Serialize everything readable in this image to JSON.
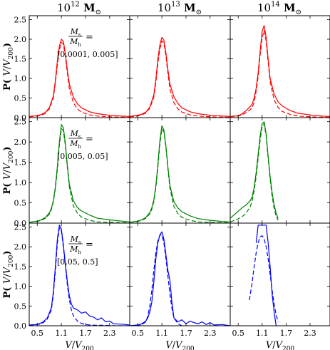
{
  "figure": {
    "column_titles": [
      {
        "base": "10",
        "exp": "12",
        "unit": "M",
        "sub": "⊙"
      },
      {
        "base": "10",
        "exp": "13",
        "unit": "M",
        "sub": "⊙"
      },
      {
        "base": "10",
        "exp": "14",
        "unit": "M",
        "sub": "⊙"
      }
    ],
    "ylabel": {
      "prefix": "P( ",
      "var": "V",
      "slash": "/",
      "var2": "V",
      "sub": "200",
      "suffix": ")"
    },
    "xlabel": {
      "var": "V",
      "slash": "/",
      "var2": "V",
      "sub": "200"
    },
    "row_annotations": [
      {
        "num": "M",
        "num_sub": "s",
        "den": "M",
        "den_sub": "h",
        "eq": "=",
        "range": "[0.0001, 0.005]"
      },
      {
        "num": "M",
        "num_sub": "s",
        "den": "M",
        "den_sub": "h",
        "eq": "=",
        "range": "[0.005, 0.05]"
      },
      {
        "num": "M",
        "num_sub": "s",
        "den": "M",
        "den_sub": "h",
        "eq": "=",
        "range": "[0.05, 0.5]"
      }
    ],
    "ytick_labels": [
      "0.0",
      "0.5",
      "1.0",
      "1.5",
      "2.0",
      "2.5"
    ],
    "xtick_labels": [
      "0.5",
      "1.1",
      "1.7",
      "2.3"
    ]
  },
  "chart_data": {
    "type": "line",
    "layout": "3x3 grid of panels, rows by stellar-to-halo mass ratio, columns by halo mass",
    "xlim": [
      0.3,
      2.8
    ],
    "ylim": [
      0,
      2.6
    ],
    "xticks": [
      0.5,
      1.1,
      1.7,
      2.3
    ],
    "yticks": [
      0.0,
      0.5,
      1.0,
      1.5,
      2.0,
      2.5
    ],
    "row_colors": [
      "#ff0000",
      "#008000",
      "#0000ff"
    ],
    "line_styles": {
      "solid": "solid",
      "dashed": "dashed"
    },
    "panels": [
      {
        "row": 0,
        "col": 0,
        "solid": {
          "x": [
            0.3,
            0.5,
            0.6,
            0.7,
            0.8,
            0.9,
            0.95,
            1.0,
            1.05,
            1.1,
            1.15,
            1.2,
            1.25,
            1.3,
            1.4,
            1.5,
            1.6,
            1.8,
            2.0,
            2.3,
            2.6,
            2.8
          ],
          "y": [
            0.03,
            0.05,
            0.08,
            0.13,
            0.25,
            0.55,
            0.95,
            1.45,
            1.82,
            2.0,
            1.95,
            1.62,
            1.2,
            0.85,
            0.52,
            0.35,
            0.25,
            0.15,
            0.1,
            0.06,
            0.04,
            0.03
          ]
        },
        "dashed": {
          "x": [
            0.3,
            0.5,
            0.6,
            0.7,
            0.8,
            0.9,
            0.95,
            1.0,
            1.05,
            1.1,
            1.15,
            1.2,
            1.25,
            1.3,
            1.4,
            1.5,
            1.6,
            1.8,
            2.0,
            2.3,
            2.6,
            2.8
          ],
          "y": [
            0.02,
            0.04,
            0.06,
            0.11,
            0.22,
            0.5,
            0.88,
            1.35,
            1.72,
            1.92,
            1.88,
            1.55,
            1.12,
            0.72,
            0.38,
            0.22,
            0.14,
            0.07,
            0.04,
            0.02,
            0.01,
            0.01
          ]
        }
      },
      {
        "row": 0,
        "col": 1,
        "solid": {
          "x": [
            0.3,
            0.5,
            0.6,
            0.7,
            0.8,
            0.9,
            0.95,
            1.0,
            1.05,
            1.1,
            1.15,
            1.2,
            1.25,
            1.3,
            1.4,
            1.5,
            1.6,
            1.8,
            2.0,
            2.3,
            2.6,
            2.8
          ],
          "y": [
            0.03,
            0.06,
            0.09,
            0.14,
            0.27,
            0.58,
            0.98,
            1.5,
            1.85,
            2.05,
            1.98,
            1.65,
            1.22,
            0.86,
            0.53,
            0.36,
            0.25,
            0.15,
            0.1,
            0.06,
            0.04,
            0.03
          ]
        },
        "dashed": {
          "x": [
            0.3,
            0.5,
            0.6,
            0.7,
            0.8,
            0.9,
            0.95,
            1.0,
            1.05,
            1.1,
            1.15,
            1.2,
            1.25,
            1.3,
            1.4,
            1.5,
            1.6,
            1.8,
            2.0,
            2.3,
            2.6,
            2.8
          ],
          "y": [
            0.02,
            0.04,
            0.07,
            0.12,
            0.24,
            0.52,
            0.9,
            1.38,
            1.75,
            1.96,
            1.9,
            1.57,
            1.13,
            0.73,
            0.38,
            0.22,
            0.14,
            0.07,
            0.04,
            0.02,
            0.01,
            0.01
          ]
        }
      },
      {
        "row": 0,
        "col": 2,
        "solid": {
          "x": [
            0.3,
            0.5,
            0.6,
            0.7,
            0.8,
            0.85,
            0.9,
            0.95,
            1.0,
            1.05,
            1.1,
            1.15,
            1.2,
            1.25,
            1.3,
            1.4,
            1.5,
            1.6,
            1.8,
            2.0,
            2.3,
            2.6,
            2.8
          ],
          "y": [
            0.03,
            0.05,
            0.1,
            0.18,
            0.28,
            0.35,
            0.5,
            0.75,
            1.15,
            1.7,
            2.2,
            2.35,
            2.05,
            1.5,
            1.0,
            0.6,
            0.4,
            0.3,
            0.18,
            0.11,
            0.07,
            0.04,
            0.03
          ]
        },
        "dashed": {
          "x": [
            0.3,
            0.5,
            0.6,
            0.7,
            0.8,
            0.85,
            0.9,
            0.95,
            1.0,
            1.05,
            1.1,
            1.15,
            1.2,
            1.25,
            1.3,
            1.4,
            1.5,
            1.6,
            1.8,
            2.0,
            2.3,
            2.6,
            2.8
          ],
          "y": [
            0.02,
            0.04,
            0.07,
            0.13,
            0.2,
            0.26,
            0.4,
            0.68,
            1.05,
            1.6,
            2.05,
            2.22,
            1.95,
            1.42,
            0.92,
            0.45,
            0.26,
            0.16,
            0.08,
            0.04,
            0.02,
            0.01,
            0.01
          ]
        }
      },
      {
        "row": 1,
        "col": 0,
        "solid": {
          "x": [
            0.3,
            0.5,
            0.6,
            0.7,
            0.8,
            0.85,
            0.9,
            0.95,
            1.0,
            1.05,
            1.1,
            1.15,
            1.2,
            1.25,
            1.3,
            1.4,
            1.5,
            1.6,
            1.8,
            2.0,
            2.3,
            2.6,
            2.8
          ],
          "y": [
            0.02,
            0.05,
            0.08,
            0.14,
            0.25,
            0.36,
            0.55,
            0.9,
            1.4,
            2.0,
            2.43,
            2.35,
            1.95,
            1.4,
            0.95,
            0.55,
            0.38,
            0.3,
            0.2,
            0.12,
            0.08,
            0.05,
            0.03
          ]
        },
        "dashed": {
          "x": [
            0.3,
            0.5,
            0.6,
            0.7,
            0.8,
            0.85,
            0.9,
            0.95,
            1.0,
            1.05,
            1.1,
            1.15,
            1.2,
            1.25,
            1.3,
            1.4,
            1.5,
            1.6,
            1.8,
            2.0,
            2.3,
            2.6,
            2.8
          ],
          "y": [
            0.02,
            0.04,
            0.07,
            0.12,
            0.22,
            0.33,
            0.52,
            0.85,
            1.32,
            1.92,
            2.33,
            2.28,
            1.9,
            1.35,
            0.88,
            0.42,
            0.24,
            0.15,
            0.07,
            0.03,
            0.02,
            0.01,
            0.01
          ]
        }
      },
      {
        "row": 1,
        "col": 1,
        "solid": {
          "x": [
            0.3,
            0.5,
            0.6,
            0.7,
            0.8,
            0.85,
            0.9,
            0.95,
            1.0,
            1.05,
            1.1,
            1.15,
            1.2,
            1.25,
            1.3,
            1.4,
            1.5,
            1.6,
            1.8,
            2.0,
            2.3,
            2.6,
            2.8
          ],
          "y": [
            0.02,
            0.05,
            0.08,
            0.14,
            0.26,
            0.38,
            0.57,
            0.93,
            1.45,
            2.03,
            2.4,
            2.3,
            1.9,
            1.38,
            0.93,
            0.53,
            0.37,
            0.28,
            0.18,
            0.11,
            0.07,
            0.04,
            0.03
          ]
        },
        "dashed": {
          "x": [
            0.3,
            0.5,
            0.6,
            0.7,
            0.8,
            0.85,
            0.9,
            0.95,
            1.0,
            1.05,
            1.1,
            1.15,
            1.2,
            1.25,
            1.3,
            1.4,
            1.5,
            1.6,
            1.8,
            2.0,
            2.3,
            2.6,
            2.8
          ],
          "y": [
            0.02,
            0.04,
            0.07,
            0.12,
            0.23,
            0.34,
            0.53,
            0.88,
            1.37,
            1.95,
            2.32,
            2.25,
            1.87,
            1.33,
            0.86,
            0.41,
            0.23,
            0.14,
            0.07,
            0.03,
            0.02,
            0.01,
            0.01
          ]
        }
      },
      {
        "row": 1,
        "col": 2,
        "solid": {
          "x": [
            0.3,
            0.45,
            0.6,
            0.7,
            0.8,
            0.85,
            0.9,
            0.95,
            1.0,
            1.05,
            1.1,
            1.15,
            1.2,
            1.25,
            1.3,
            1.35,
            1.4,
            1.45,
            1.5
          ],
          "y": [
            0.12,
            0.25,
            0.38,
            0.45,
            0.55,
            0.65,
            0.88,
            1.25,
            1.7,
            2.15,
            2.45,
            2.5,
            2.2,
            1.65,
            1.15,
            0.75,
            0.45,
            0.25,
            0.12
          ]
        },
        "dashed": {
          "x": [
            0.3,
            0.45,
            0.6,
            0.7,
            0.8,
            0.85,
            0.9,
            0.95,
            1.0,
            1.05,
            1.1,
            1.15,
            1.2,
            1.25,
            1.3,
            1.35,
            1.4,
            1.45,
            1.5
          ],
          "y": [
            0.03,
            0.08,
            0.16,
            0.25,
            0.4,
            0.55,
            0.8,
            1.15,
            1.6,
            2.05,
            2.38,
            2.45,
            2.15,
            1.6,
            1.08,
            0.66,
            0.36,
            0.17,
            0.07
          ]
        }
      },
      {
        "row": 2,
        "col": 0,
        "solid": {
          "x": [
            0.3,
            0.45,
            0.55,
            0.65,
            0.75,
            0.85,
            0.9,
            0.95,
            1.0,
            1.05,
            1.1,
            1.15,
            1.2,
            1.25,
            1.3,
            1.35,
            1.4,
            1.5,
            1.6,
            1.7,
            1.8,
            1.9,
            2.0,
            2.1,
            2.2,
            2.3,
            2.4,
            2.6,
            2.8
          ],
          "y": [
            0.02,
            0.03,
            0.05,
            0.1,
            0.2,
            0.45,
            0.85,
            1.5,
            2.2,
            2.55,
            2.45,
            2.05,
            1.55,
            1.1,
            0.75,
            0.55,
            0.45,
            0.4,
            0.32,
            0.35,
            0.25,
            0.22,
            0.15,
            0.2,
            0.1,
            0.12,
            0.05,
            0.04,
            0.02
          ]
        },
        "dashed": {
          "x": [
            0.3,
            0.45,
            0.55,
            0.65,
            0.75,
            0.85,
            0.9,
            0.95,
            1.0,
            1.05,
            1.1,
            1.15,
            1.2,
            1.25,
            1.3,
            1.35,
            1.4,
            1.5,
            1.6,
            1.7,
            1.8,
            2.0,
            2.2,
            2.4,
            2.6,
            2.8
          ],
          "y": [
            0.01,
            0.02,
            0.04,
            0.08,
            0.17,
            0.4,
            0.78,
            1.4,
            2.1,
            2.48,
            2.4,
            2.0,
            1.5,
            1.02,
            0.65,
            0.4,
            0.25,
            0.12,
            0.06,
            0.03,
            0.02,
            0.01,
            0.01,
            0.0,
            0.0,
            0.0
          ]
        }
      },
      {
        "row": 2,
        "col": 1,
        "solid": {
          "x": [
            0.3,
            0.5,
            0.6,
            0.7,
            0.75,
            0.8,
            0.85,
            0.9,
            0.95,
            1.0,
            1.05,
            1.1,
            1.15,
            1.2,
            1.25,
            1.3,
            1.35,
            1.4,
            1.5,
            1.6,
            1.7,
            1.8,
            1.9,
            2.0,
            2.1,
            2.2,
            2.3,
            2.4,
            2.6,
            2.8
          ],
          "y": [
            0.0,
            0.02,
            0.05,
            0.12,
            0.2,
            0.35,
            0.6,
            1.1,
            1.7,
            2.1,
            2.3,
            2.38,
            2.2,
            1.8,
            1.4,
            1.15,
            0.6,
            0.2,
            0.1,
            0.15,
            0.05,
            0.12,
            0.08,
            0.05,
            0.1,
            0.03,
            0.08,
            0.02,
            0.03,
            0.0
          ]
        },
        "dashed": {
          "x": [
            0.3,
            0.5,
            0.6,
            0.7,
            0.75,
            0.8,
            0.85,
            0.9,
            0.95,
            1.0,
            1.05,
            1.1,
            1.15,
            1.2,
            1.25,
            1.3,
            1.35,
            1.4,
            1.5,
            1.6
          ],
          "y": [
            0.0,
            0.0,
            0.03,
            0.1,
            0.25,
            0.5,
            0.9,
            1.4,
            1.85,
            2.15,
            2.3,
            2.3,
            2.1,
            1.7,
            1.25,
            0.8,
            0.45,
            0.2,
            0.05,
            0.0
          ]
        }
      },
      {
        "row": 2,
        "col": 2,
        "solid": {
          "x": [
            0.95,
            1.0,
            1.05,
            1.1,
            1.15,
            1.2,
            1.25,
            1.3,
            1.35,
            1.4,
            1.45
          ],
          "y": [
            2.1,
            2.55,
            2.55,
            2.55,
            2.55,
            2.55,
            2.1,
            1.5,
            0.8,
            0.35,
            0.0
          ]
        },
        "dashed": {
          "x": [
            0.78,
            0.85,
            0.9,
            0.95,
            1.0,
            1.05,
            1.1,
            1.15,
            1.2,
            1.25,
            1.3,
            1.35,
            1.4,
            1.45,
            1.5
          ],
          "y": [
            0.65,
            1.1,
            1.5,
            1.85,
            2.1,
            2.25,
            2.28,
            2.2,
            2.0,
            1.7,
            1.3,
            0.9,
            0.55,
            0.28,
            0.1
          ]
        }
      }
    ]
  }
}
